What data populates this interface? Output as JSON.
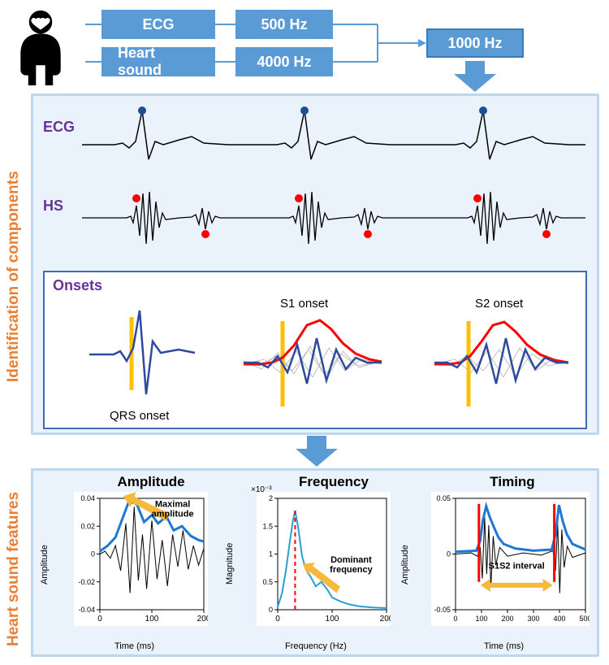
{
  "colors": {
    "box_fill": "#5b9bd5",
    "box_text": "#ffffff",
    "panel_border": "#bdd7ee",
    "panel_bg": "#eaf3fb",
    "side_label": "#ed7d31",
    "signal_label": "#663399",
    "onset_border": "#3e6db5",
    "ecg_line": "#000000",
    "ecg_peak": "#1f4e99",
    "hs_line": "#000000",
    "hs_peak": "#ff0000",
    "onset_line": "#2e4a9e",
    "onset_marker": "#ffc000",
    "envelope": "#ff0000",
    "gray_traces": "#b0b0b0",
    "chart_line_blue": "#1f77d4",
    "chart_line_teal": "#2a9fd6",
    "arrow_fill": "#f6b93b",
    "timing_marker": "#ff0000"
  },
  "top": {
    "box1": "ECG",
    "box2": "Heart sound",
    "box3": "500 Hz",
    "box4": "4000 Hz",
    "box5": "1000 Hz"
  },
  "side": {
    "label1": "Identification of components",
    "label2": "Heart sound features"
  },
  "signals": {
    "ecg": "ECG",
    "hs": "HS",
    "onsets": "Onsets",
    "qrs": "QRS onset",
    "s1": "S1 onset",
    "s2": "S2 onset"
  },
  "charts": {
    "amp": {
      "title": "Amplitude",
      "xlabel": "Time (ms)",
      "ylabel": "Amplitude",
      "xlim": [
        0,
        200
      ],
      "xticks": [
        0,
        100,
        200
      ],
      "ylim": [
        -0.04,
        0.04
      ],
      "yticks": [
        -0.04,
        -0.02,
        0,
        0.02,
        0.04
      ],
      "annotation": "Maximal amplitude",
      "envelope": [
        [
          0,
          0.002
        ],
        [
          15,
          0.006
        ],
        [
          30,
          0.012
        ],
        [
          45,
          0.027
        ],
        [
          55,
          0.037
        ],
        [
          62,
          0.039
        ],
        [
          72,
          0.035
        ],
        [
          85,
          0.023
        ],
        [
          100,
          0.028
        ],
        [
          112,
          0.022
        ],
        [
          128,
          0.027
        ],
        [
          142,
          0.017
        ],
        [
          158,
          0.02
        ],
        [
          175,
          0.013
        ],
        [
          190,
          0.01
        ],
        [
          200,
          0.009
        ]
      ],
      "raw": [
        [
          0,
          0
        ],
        [
          10,
          0.002
        ],
        [
          20,
          -0.003
        ],
        [
          30,
          0.006
        ],
        [
          40,
          -0.012
        ],
        [
          50,
          0.022
        ],
        [
          58,
          -0.028
        ],
        [
          66,
          0.034
        ],
        [
          74,
          -0.019
        ],
        [
          82,
          0.014
        ],
        [
          90,
          -0.025
        ],
        [
          100,
          0.024
        ],
        [
          110,
          -0.018
        ],
        [
          120,
          0.01
        ],
        [
          130,
          -0.023
        ],
        [
          140,
          0.014
        ],
        [
          150,
          -0.009
        ],
        [
          160,
          0.017
        ],
        [
          170,
          -0.011
        ],
        [
          180,
          0.006
        ],
        [
          190,
          -0.008
        ],
        [
          200,
          0.004
        ]
      ]
    },
    "freq": {
      "title": "Frequency",
      "xlabel": "Frequency (Hz)",
      "ylabel": "Magnitude",
      "xlim": [
        0,
        200
      ],
      "xticks": [
        0,
        100,
        200
      ],
      "ylim": [
        0,
        2
      ],
      "yticks": [
        0,
        0.5,
        1,
        1.5,
        2
      ],
      "exponent": "×10⁻³",
      "annotation": "Dominant frequency",
      "dominant_x": 32,
      "curve": [
        [
          0,
          0.05
        ],
        [
          8,
          0.3
        ],
        [
          15,
          0.7
        ],
        [
          22,
          1.2
        ],
        [
          28,
          1.6
        ],
        [
          32,
          1.78
        ],
        [
          38,
          1.45
        ],
        [
          45,
          0.95
        ],
        [
          52,
          0.72
        ],
        [
          60,
          0.6
        ],
        [
          70,
          0.42
        ],
        [
          80,
          0.5
        ],
        [
          90,
          0.38
        ],
        [
          100,
          0.22
        ],
        [
          115,
          0.15
        ],
        [
          130,
          0.1
        ],
        [
          150,
          0.06
        ],
        [
          175,
          0.04
        ],
        [
          200,
          0.03
        ]
      ]
    },
    "timing": {
      "title": "Timing",
      "xlabel": "Time (ms)",
      "ylabel": "Amplitude",
      "xlim": [
        0,
        500
      ],
      "xticks": [
        0,
        100,
        200,
        300,
        400,
        500
      ],
      "ylim": [
        -0.05,
        0.05
      ],
      "yticks": [
        -0.05,
        0,
        0.05
      ],
      "annotation": "S1S2 interval",
      "s1_x": 90,
      "s2_x": 380,
      "env": [
        [
          0,
          0.002
        ],
        [
          80,
          0.003
        ],
        [
          95,
          0.012
        ],
        [
          105,
          0.03
        ],
        [
          118,
          0.043
        ],
        [
          132,
          0.033
        ],
        [
          148,
          0.024
        ],
        [
          165,
          0.015
        ],
        [
          185,
          0.009
        ],
        [
          230,
          0.005
        ],
        [
          300,
          0.003
        ],
        [
          370,
          0.004
        ],
        [
          385,
          0.018
        ],
        [
          398,
          0.044
        ],
        [
          412,
          0.03
        ],
        [
          428,
          0.018
        ],
        [
          450,
          0.009
        ],
        [
          500,
          0.004
        ]
      ],
      "raw": [
        [
          0,
          0
        ],
        [
          60,
          0.001
        ],
        [
          85,
          -0.002
        ],
        [
          95,
          0.006
        ],
        [
          103,
          -0.022
        ],
        [
          112,
          0.033
        ],
        [
          120,
          -0.018
        ],
        [
          128,
          0.026
        ],
        [
          136,
          -0.03
        ],
        [
          145,
          0.016
        ],
        [
          155,
          -0.01
        ],
        [
          170,
          0.006
        ],
        [
          200,
          -0.002
        ],
        [
          260,
          0.001
        ],
        [
          330,
          -0.001
        ],
        [
          375,
          0.003
        ],
        [
          385,
          -0.015
        ],
        [
          393,
          0.028
        ],
        [
          401,
          -0.035
        ],
        [
          409,
          0.022
        ],
        [
          418,
          -0.012
        ],
        [
          430,
          0.007
        ],
        [
          450,
          -0.003
        ],
        [
          500,
          0.001
        ]
      ]
    }
  }
}
